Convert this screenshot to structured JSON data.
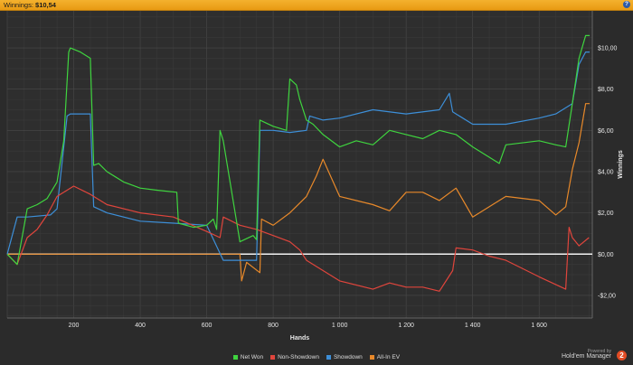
{
  "window": {
    "title_prefix": "Winnings:",
    "title_amount": "$10,54",
    "help_label": "?"
  },
  "legend": [
    {
      "label": "Net Won",
      "color": "#3fd43f"
    },
    {
      "label": "Non-Showdown",
      "color": "#e0453c"
    },
    {
      "label": "Showdown",
      "color": "#3d8fd8"
    },
    {
      "label": "All-In EV",
      "color": "#e8892a"
    }
  ],
  "branding": {
    "powered_by": "Powered by",
    "product": "Hold'em Manager",
    "badge": "2"
  },
  "chart_data": {
    "type": "line",
    "xlabel": "Hands",
    "ylabel": "Winnings",
    "xlim": [
      0,
      1760
    ],
    "ylim": [
      -3.1,
      11.8
    ],
    "x_ticks": [
      200,
      400,
      600,
      800,
      1000,
      1200,
      1400,
      1600
    ],
    "x_tick_labels": [
      "200",
      "400",
      "600",
      "800",
      "1 000",
      "1 200",
      "1 400",
      "1 600"
    ],
    "y_ticks": [
      -2,
      0,
      2,
      4,
      6,
      8,
      10
    ],
    "y_tick_labels": [
      "-$2,00",
      "$0,00",
      "$2,00",
      "$4,00",
      "$6,00",
      "$8,00",
      "$10,00"
    ],
    "grid": true,
    "legend_position": "bottom",
    "zero_line": true,
    "series": [
      {
        "name": "Net Won",
        "color": "#3fd43f",
        "x": [
          0,
          30,
          60,
          90,
          120,
          150,
          170,
          185,
          190,
          220,
          250,
          260,
          275,
          300,
          350,
          400,
          450,
          510,
          515,
          560,
          600,
          620,
          630,
          640,
          650,
          700,
          740,
          750,
          760,
          800,
          840,
          850,
          870,
          880,
          900,
          920,
          950,
          1000,
          1050,
          1100,
          1150,
          1200,
          1250,
          1300,
          1350,
          1400,
          1480,
          1500,
          1600,
          1650,
          1680,
          1700,
          1720,
          1740,
          1752
        ],
        "y": [
          0,
          -0.5,
          2.2,
          2.4,
          2.7,
          3.5,
          5.5,
          9.8,
          10.0,
          9.8,
          9.5,
          4.3,
          4.4,
          4,
          3.5,
          3.2,
          3.1,
          3,
          1.5,
          1.3,
          1.4,
          1.7,
          1.2,
          6,
          5.5,
          0.6,
          0.9,
          0.7,
          6.5,
          6.2,
          6,
          8.5,
          8.2,
          7.5,
          6.5,
          6.3,
          5.8,
          5.2,
          5.5,
          5.3,
          6,
          5.8,
          5.6,
          6,
          5.8,
          5.2,
          4.4,
          5.3,
          5.5,
          5.3,
          5.2,
          7.3,
          9.5,
          10.6,
          10.6
        ]
      },
      {
        "name": "Non-Showdown",
        "color": "#e0453c",
        "x": [
          0,
          30,
          60,
          90,
          120,
          150,
          180,
          200,
          250,
          300,
          400,
          500,
          600,
          640,
          650,
          700,
          750,
          800,
          850,
          880,
          900,
          1000,
          1100,
          1150,
          1200,
          1250,
          1300,
          1340,
          1350,
          1400,
          1450,
          1500,
          1600,
          1680,
          1690,
          1700,
          1720,
          1750
        ],
        "y": [
          0,
          -0.5,
          0.8,
          1.2,
          1.9,
          2.8,
          3.1,
          3.3,
          2.9,
          2.4,
          2,
          1.8,
          1.1,
          0.8,
          1.8,
          1.4,
          1.2,
          0.9,
          0.6,
          0.2,
          -0.3,
          -1.3,
          -1.7,
          -1.4,
          -1.6,
          -1.6,
          -1.8,
          -0.8,
          0.3,
          0.2,
          -0.1,
          -0.3,
          -1.1,
          -1.7,
          1.3,
          0.8,
          0.4,
          0.8
        ]
      },
      {
        "name": "Showdown",
        "color": "#3d8fd8",
        "x": [
          0,
          30,
          60,
          130,
          150,
          180,
          190,
          250,
          260,
          300,
          400,
          500,
          600,
          650,
          700,
          750,
          760,
          800,
          850,
          900,
          910,
          950,
          1000,
          1100,
          1200,
          1300,
          1330,
          1340,
          1350,
          1400,
          1500,
          1600,
          1650,
          1700,
          1720,
          1740,
          1752
        ],
        "y": [
          0,
          1.8,
          1.8,
          1.9,
          2.2,
          6.7,
          6.8,
          6.8,
          2.3,
          2,
          1.6,
          1.5,
          1.4,
          -0.3,
          -0.3,
          -0.3,
          6,
          6,
          5.9,
          6,
          6.7,
          6.5,
          6.6,
          7,
          6.8,
          7,
          7.8,
          6.9,
          6.8,
          6.3,
          6.3,
          6.6,
          6.8,
          7.3,
          9.2,
          9.8,
          9.8
        ]
      },
      {
        "name": "All-In EV",
        "color": "#e8892a",
        "x": [
          0,
          700,
          705,
          720,
          760,
          765,
          800,
          850,
          900,
          930,
          950,
          1000,
          1100,
          1150,
          1200,
          1250,
          1300,
          1350,
          1400,
          1500,
          1600,
          1650,
          1680,
          1700,
          1720,
          1740,
          1752
        ],
        "y": [
          0,
          0,
          -1.3,
          -0.4,
          -0.9,
          1.7,
          1.4,
          2,
          2.8,
          3.8,
          4.6,
          2.8,
          2.4,
          2.1,
          3,
          3,
          2.6,
          3.2,
          1.8,
          2.8,
          2.6,
          1.9,
          2.3,
          4.1,
          5.4,
          7.3,
          7.3
        ]
      }
    ]
  }
}
